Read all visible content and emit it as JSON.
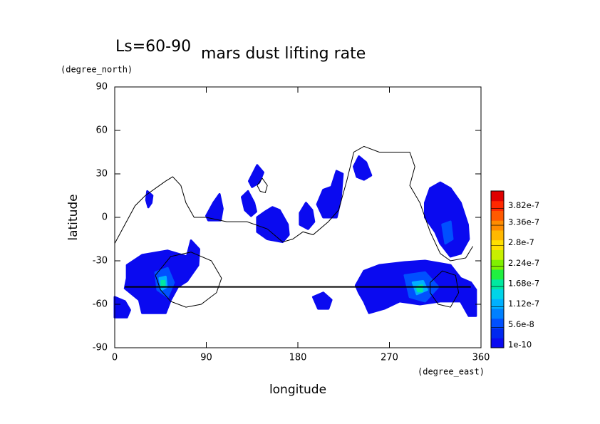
{
  "chart_data": {
    "type": "contour_map",
    "title": "mars dust lifting rate",
    "annotation": "Ls=60-90",
    "ylabel": "latitude",
    "yunit": "(degree_north)",
    "xlabel": "longitude",
    "xunit": "(degree_east)",
    "xlim": [
      0,
      360
    ],
    "xticks": [
      0,
      90,
      180,
      270,
      360
    ],
    "ylim": [
      -90,
      90
    ],
    "yticks": [
      -90,
      -60,
      -30,
      0,
      30,
      60,
      90
    ],
    "zlim": [
      0,
      4.3e-07
    ],
    "colorbar_ticks": [
      {
        "value": 1e-10,
        "label": "1e-10"
      },
      {
        "value": 5.6e-08,
        "label": "5.6e-8"
      },
      {
        "value": 1.12e-07,
        "label": "1.12e-7"
      },
      {
        "value": 1.68e-07,
        "label": "1.68e-7"
      },
      {
        "value": 2.24e-07,
        "label": "2.24e-7"
      },
      {
        "value": 2.8e-07,
        "label": "2.8e-7"
      },
      {
        "value": 3.36e-07,
        "label": "3.36e-7"
      },
      {
        "value": 3.82e-07,
        "label": "3.82e-7"
      }
    ],
    "colormap": [
      "#0a0af0",
      "#0028f0",
      "#0050ff",
      "#0080ff",
      "#00b0ff",
      "#00d4e8",
      "#00e8a0",
      "#20f040",
      "#80f000",
      "#c8f000",
      "#ffe000",
      "#ffb800",
      "#ff8c00",
      "#ff5a00",
      "#ff2800",
      "#e00000"
    ],
    "regions": [
      {
        "value": 1e-10,
        "lon": [
          12,
          27,
          52,
          71,
          75,
          83,
          82,
          71,
          62,
          55,
          50,
          27,
          24,
          10,
          12
        ],
        "lat": [
          -33,
          -26,
          -23,
          -27,
          -16,
          -22,
          -33,
          -44,
          -48,
          -57,
          -66,
          -66,
          -57,
          -49,
          -42
        ]
      },
      {
        "value": 1e-10,
        "lon": [
          0,
          10,
          15,
          12,
          0
        ],
        "lat": [
          -55,
          -58,
          -64,
          -69,
          -69
        ]
      },
      {
        "value": 1e-10,
        "lon": [
          32,
          37,
          36,
          33,
          31
        ],
        "lat": [
          18,
          15,
          10,
          7,
          12
        ]
      },
      {
        "value": 1e-10,
        "lon": [
          90,
          97,
          103,
          106,
          104,
          92
        ],
        "lat": [
          1,
          10,
          16,
          6,
          -2,
          -2
        ]
      },
      {
        "value": 1e-10,
        "lon": [
          125,
          131,
          137,
          139,
          134,
          128
        ],
        "lat": [
          14,
          18,
          10,
          4,
          1,
          5
        ]
      },
      {
        "value": 1e-10,
        "lon": [
          132,
          140,
          146,
          142,
          135
        ],
        "lat": [
          25,
          36,
          31,
          24,
          21
        ]
      },
      {
        "value": 1e-10,
        "lon": [
          140,
          148,
          155,
          162,
          170,
          171,
          165,
          150,
          140
        ],
        "lat": [
          0,
          4,
          7,
          5,
          -5,
          -12,
          -17,
          -15,
          -10
        ]
      },
      {
        "value": 1e-10,
        "lon": [
          182,
          188,
          194,
          196,
          190,
          182
        ],
        "lat": [
          3,
          10,
          5,
          -3,
          -8,
          -5
        ]
      },
      {
        "value": 1e-10,
        "lon": [
          199,
          205,
          213,
          218,
          224,
          222,
          218,
          205
        ],
        "lat": [
          9,
          19,
          21,
          32,
          30,
          12,
          0,
          0
        ]
      },
      {
        "value": 1e-10,
        "lon": [
          235,
          240,
          247,
          252,
          245,
          238
        ],
        "lat": [
          35,
          42,
          38,
          29,
          26,
          28
        ]
      },
      {
        "value": 1e-10,
        "lon": [
          305,
          310,
          320,
          330,
          340,
          347,
          348,
          340,
          330,
          320,
          315,
          305
        ],
        "lat": [
          10,
          20,
          24,
          20,
          10,
          -5,
          -15,
          -25,
          -27,
          -18,
          -10,
          0
        ]
      },
      {
        "value": 1e-10,
        "lon": [
          237,
          245,
          260,
          285,
          305,
          330,
          340,
          350,
          355,
          355,
          348,
          340,
          320,
          300,
          280,
          265,
          250,
          245,
          240
        ],
        "lat": [
          -47,
          -37,
          -33,
          -31,
          -30,
          -33,
          -42,
          -45,
          -50,
          -68,
          -68,
          -58,
          -58,
          -60,
          -58,
          -63,
          -66,
          -58,
          -52
        ]
      },
      {
        "value": 1e-10,
        "lon": [
          195,
          205,
          213,
          210,
          200
        ],
        "lat": [
          -55,
          -52,
          -57,
          -63,
          -63
        ]
      },
      {
        "value": 5.6e-08,
        "lon": [
          40,
          52,
          58,
          52,
          42
        ],
        "lat": [
          -38,
          -35,
          -45,
          -55,
          -50
        ]
      },
      {
        "value": 1.12e-07,
        "lon": [
          44,
          50,
          51,
          46
        ],
        "lat": [
          -42,
          -41,
          -48,
          -50
        ]
      },
      {
        "value": 1.68e-07,
        "lon": [
          46,
          49,
          49,
          46
        ],
        "lat": [
          -44,
          -44,
          -47,
          -47
        ]
      },
      {
        "value": 5.6e-08,
        "lon": [
          285,
          305,
          318,
          305,
          290
        ],
        "lat": [
          -40,
          -38,
          -48,
          -58,
          -55
        ]
      },
      {
        "value": 1.12e-07,
        "lon": [
          293,
          303,
          307,
          297
        ],
        "lat": [
          -45,
          -44,
          -50,
          -53
        ]
      },
      {
        "value": 1.68e-07,
        "lon": [
          297,
          302,
          302,
          298
        ],
        "lat": [
          -48,
          -47,
          -51,
          -51
        ]
      },
      {
        "value": 5.6e-08,
        "lon": [
          322,
          330,
          332,
          325
        ],
        "lat": [
          -5,
          -3,
          -15,
          -18
        ]
      }
    ],
    "contour_lines": [
      {
        "lon": [
          0,
          10,
          20,
          30,
          40,
          50,
          57,
          65,
          70,
          78,
          90,
          110,
          130,
          150,
          165,
          175,
          185,
          195,
          210,
          220,
          228,
          235,
          245,
          260,
          290,
          295,
          290,
          300,
          305,
          310,
          320,
          330,
          345,
          352
        ],
        "lat": [
          -18,
          -5,
          8,
          15,
          20,
          25,
          28,
          22,
          10,
          0,
          0,
          -3,
          -3,
          -8,
          -17,
          -15,
          -10,
          -12,
          -3,
          5,
          25,
          45,
          49,
          45,
          45,
          35,
          22,
          10,
          0,
          -10,
          -25,
          -30,
          -28,
          -20
        ]
      },
      {
        "lon": [
          40,
          55,
          75,
          95,
          105,
          100,
          85,
          70,
          55,
          45,
          40
        ],
        "lat": [
          -40,
          -27,
          -24,
          -30,
          -42,
          -52,
          -60,
          -62,
          -58,
          -50,
          -40
        ]
      },
      {
        "lon": [
          310,
          322,
          335,
          338,
          330,
          318,
          310,
          310
        ],
        "lat": [
          -45,
          -37,
          -40,
          -52,
          -62,
          -60,
          -52,
          -45
        ]
      },
      {
        "lon": [
          140,
          145,
          150,
          148,
          143,
          140
        ],
        "lat": [
          22,
          27,
          22,
          17,
          18,
          22
        ]
      },
      {
        "lon": [
          10,
          100,
          200,
          300,
          350
        ],
        "lat": [
          -48,
          -48,
          -48,
          -48,
          -48
        ]
      }
    ]
  }
}
